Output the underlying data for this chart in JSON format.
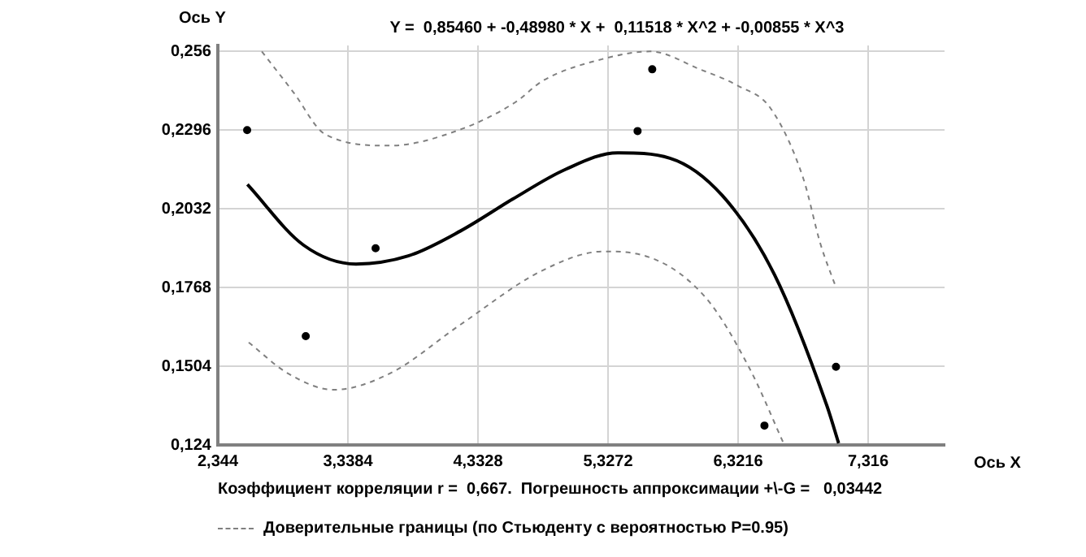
{
  "chart_data": {
    "type": "line",
    "title": "Y =  0,85460 + -0,48980 * X +  0,11518 * X^2 + -0,00855 * X^3",
    "xlabel": "Ось X",
    "ylabel": "Ось Y",
    "xlim": [
      2.344,
      7.9
    ],
    "ylim": [
      0.124,
      0.258
    ],
    "xticks": [
      {
        "value": 2.344,
        "label": "2,344"
      },
      {
        "value": 3.3384,
        "label": "3,3384"
      },
      {
        "value": 4.3328,
        "label": "4,3328"
      },
      {
        "value": 5.3272,
        "label": "5,3272"
      },
      {
        "value": 6.3216,
        "label": "6,3216"
      },
      {
        "value": 7.316,
        "label": "7,316"
      }
    ],
    "yticks": [
      {
        "value": 0.124,
        "label": "0,124"
      },
      {
        "value": 0.1504,
        "label": "0,1504"
      },
      {
        "value": 0.1768,
        "label": "0,1768"
      },
      {
        "value": 0.2032,
        "label": "0,2032"
      },
      {
        "value": 0.2296,
        "label": "0,2296"
      },
      {
        "value": 0.256,
        "label": "0,256"
      }
    ],
    "grid": true,
    "legend": "bottom",
    "series": [
      {
        "type": "scatter",
        "marker": "circle",
        "color": "#000000",
        "x": [
          2.568,
          3.016,
          3.55,
          5.553,
          5.665,
          6.523,
          7.07
        ],
        "values": [
          0.2296,
          0.1605,
          0.19,
          0.2293,
          0.25,
          0.1305,
          0.1502
        ]
      },
      {
        "line_style": "solid",
        "color": "#000000",
        "x": [
          2.57,
          3.0,
          3.4,
          3.8,
          4.2,
          4.6,
          5.0,
          5.4,
          5.8,
          6.2,
          6.6,
          7.0,
          7.09
        ],
        "values": [
          0.2114,
          0.191,
          0.1847,
          0.1874,
          0.1958,
          0.2065,
          0.2164,
          0.222,
          0.2202,
          0.2077,
          0.1811,
          0.1372,
          0.1246
        ]
      },
      {
        "name": "Доверительные границы (по Стьюденту с вероятностью P=0.95)",
        "line_style": "dashed",
        "color": "#808080",
        "x": [
          2.68,
          2.92,
          3.165,
          3.66,
          4.197,
          4.62,
          4.83,
          5.29,
          5.65,
          6.03,
          6.32,
          6.57,
          6.82,
          6.95,
          7.07
        ],
        "values": [
          0.256,
          0.2424,
          0.2282,
          0.2244,
          0.2298,
          0.239,
          0.2462,
          0.2535,
          0.256,
          0.25,
          0.2445,
          0.2369,
          0.2134,
          0.1916,
          0.1768
        ]
      },
      {
        "line_style": "dashed",
        "color": "#808080",
        "x": [
          2.58,
          2.88,
          3.23,
          3.66,
          4.197,
          4.82,
          5.29,
          5.58,
          6.07,
          6.41,
          6.67
        ],
        "values": [
          0.1584,
          0.148,
          0.1425,
          0.148,
          0.1643,
          0.1824,
          0.1889,
          0.1878,
          0.1736,
          0.1496,
          0.1245
        ]
      }
    ],
    "annotations": [
      "Коэффициент корреляции r =  0,667.  Погрешность аппроксимации +\\-G =   0,03442"
    ]
  }
}
